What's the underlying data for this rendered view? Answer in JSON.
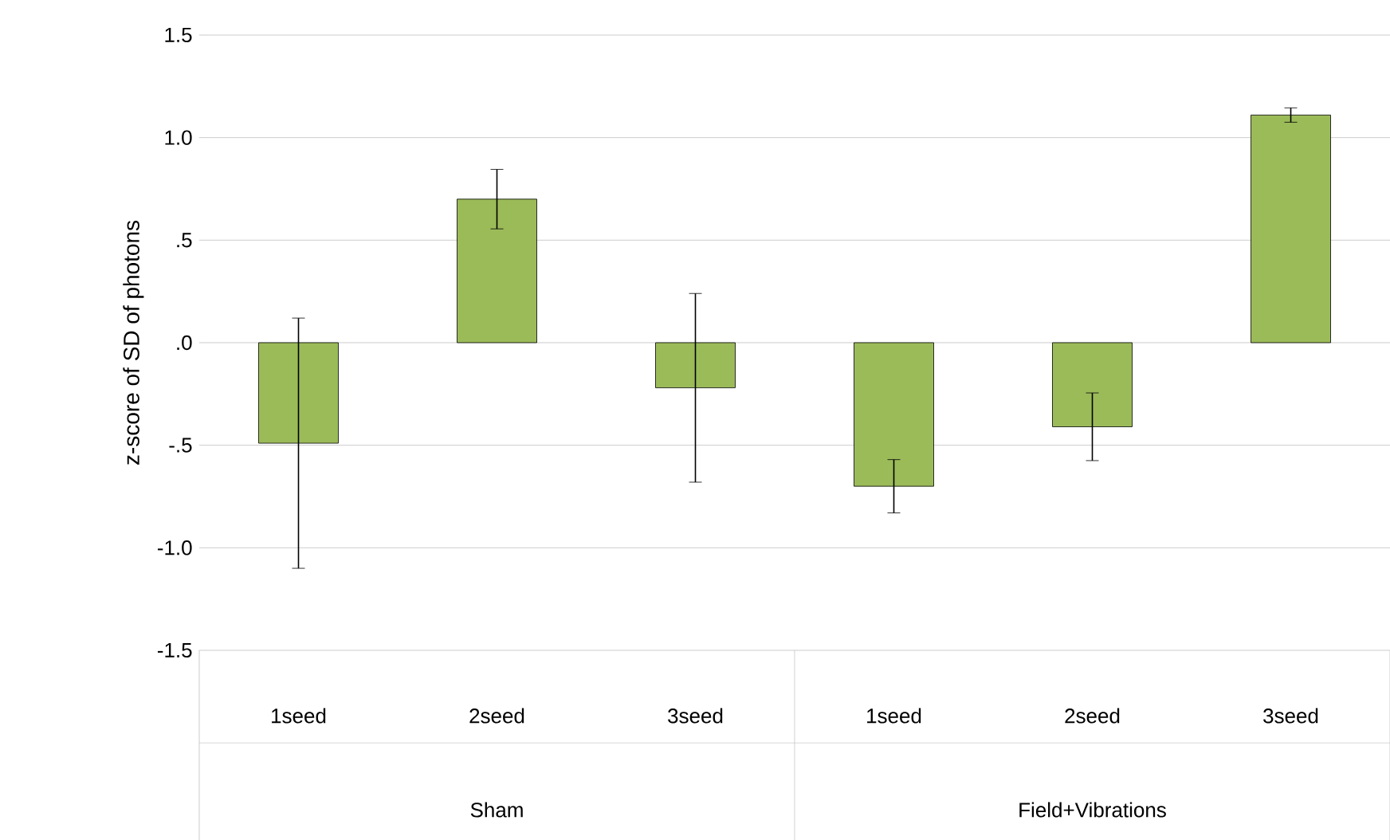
{
  "chart_data": {
    "type": "bar",
    "ylabel": "z-score of SD of photons",
    "categories": [
      "1seed",
      "2seed",
      "3seed",
      "1seed",
      "2seed",
      "3seed"
    ],
    "values": [
      -0.49,
      0.7,
      -0.22,
      -0.7,
      -0.41,
      1.11
    ],
    "errors": [
      0.61,
      0.145,
      0.46,
      0.13,
      0.165,
      0.035
    ],
    "color": "#9bbb59",
    "ylim": [
      -1.5,
      1.5
    ],
    "yticks": [
      {
        "value": -1.5,
        "label": "-1.5"
      },
      {
        "value": -1.0,
        "label": "-1.0"
      },
      {
        "value": -0.5,
        "label": "-.5"
      },
      {
        "value": 0,
        "label": ".0"
      },
      {
        "value": 0.5,
        "label": ".5"
      },
      {
        "value": 1.0,
        "label": "1.0"
      },
      {
        "value": 1.5,
        "label": "1.5"
      }
    ],
    "grid": "y",
    "annotations": [
      "Sham",
      "Field+Vibrations"
    ]
  }
}
